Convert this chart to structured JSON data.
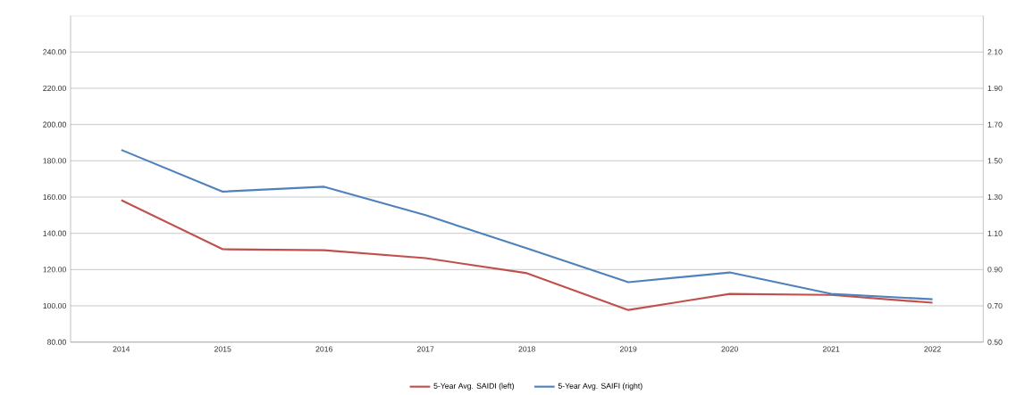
{
  "chart_data": {
    "type": "line",
    "categories": [
      "2014",
      "2015",
      "2016",
      "2017",
      "2018",
      "2019",
      "2020",
      "2021",
      "2022"
    ],
    "series": [
      {
        "name": "5-Year Avg. SAIDI (left)",
        "color": "#c0504d",
        "values": [
          158.3,
          131.2,
          130.7,
          126.3,
          118.0,
          97.7,
          106.6,
          106.0,
          101.7
        ]
      },
      {
        "name": "5-Year Avg. SAIFI (right)",
        "color": "#4f81bd",
        "axis": "y2",
        "values": [
          1.56,
          1.33,
          1.357,
          1.2,
          1.017,
          0.83,
          0.884,
          0.766,
          0.736
        ]
      }
    ],
    "ylim": [
      80,
      260
    ],
    "yticks": [
      {
        "value": 80,
        "label": "80.00"
      },
      {
        "value": 100,
        "label": "100.00"
      },
      {
        "value": 120,
        "label": "120.00"
      },
      {
        "value": 140,
        "label": "140.00"
      },
      {
        "value": 160,
        "label": "160.00"
      },
      {
        "value": 180,
        "label": "180.00"
      },
      {
        "value": 200,
        "label": "200.00"
      },
      {
        "value": 220,
        "label": "220.00"
      },
      {
        "value": 240,
        "label": "240.00"
      }
    ],
    "y2lim": [
      0.5,
      2.3
    ],
    "y2ticks": [
      {
        "value": 0.5,
        "label": "0.50"
      },
      {
        "value": 0.7,
        "label": "0.70"
      },
      {
        "value": 0.9,
        "label": "0.90"
      },
      {
        "value": 1.1,
        "label": "1.10"
      },
      {
        "value": 1.3,
        "label": "1.30"
      },
      {
        "value": 1.5,
        "label": "1.50"
      },
      {
        "value": 1.7,
        "label": "1.70"
      },
      {
        "value": 1.9,
        "label": "1.90"
      },
      {
        "value": 2.1,
        "label": "2.10"
      }
    ],
    "grid": "y",
    "legend": "bottom",
    "marker": "none"
  }
}
